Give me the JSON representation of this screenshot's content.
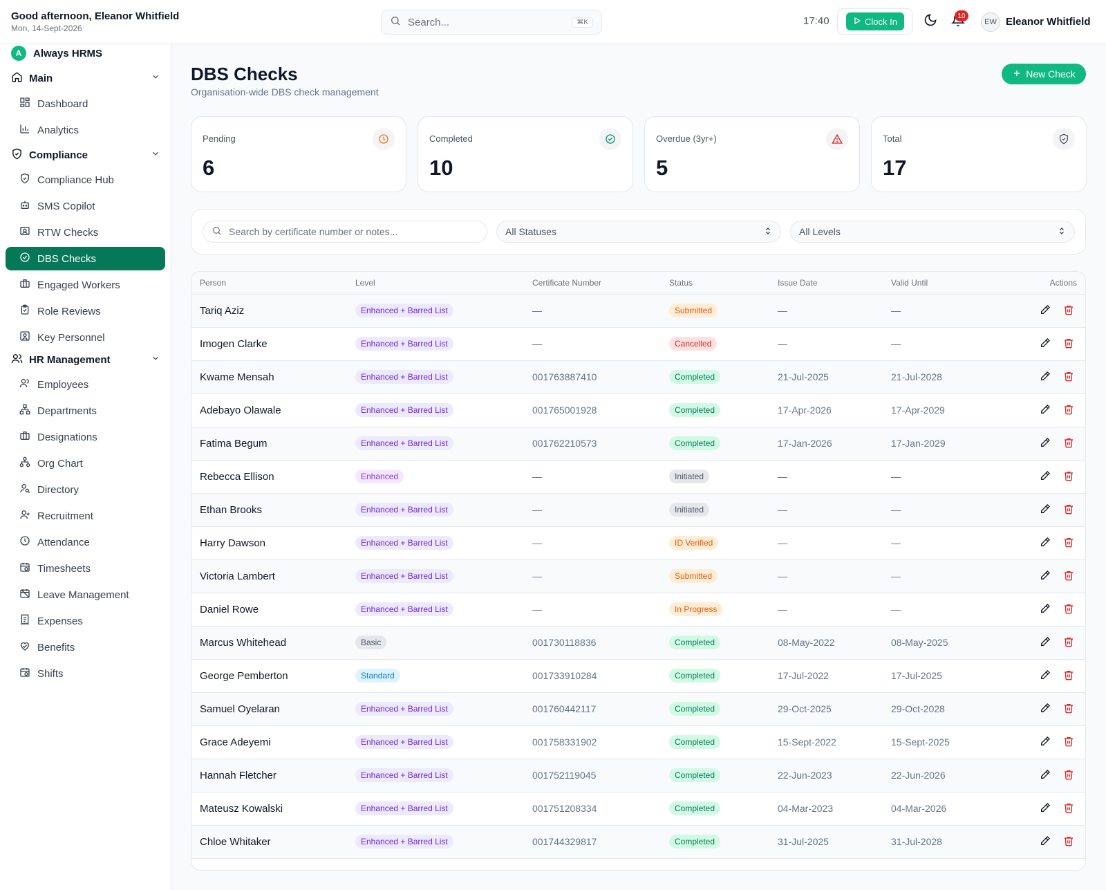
{
  "header": {
    "greeting": "Good afternoon, Eleanor Whitfield",
    "date": "Mon, 14-Sept-2026",
    "search_placeholder": "Search...",
    "search_shortcut": "⌘K",
    "time": "17:40",
    "clock_in_label": "Clock In",
    "notification_count": "10",
    "avatar_initials": "EW",
    "user_name": "Eleanor Whitfield"
  },
  "sidebar": {
    "brand_letter": "A",
    "brand_name": "Always HRMS",
    "sections": {
      "main": "Main",
      "compliance": "Compliance",
      "hr": "HR Management"
    },
    "items": {
      "dashboard": "Dashboard",
      "analytics": "Analytics",
      "compliance_hub": "Compliance Hub",
      "sms_copilot": "SMS Copilot",
      "rtw_checks": "RTW Checks",
      "dbs_checks": "DBS Checks",
      "engaged_workers": "Engaged Workers",
      "role_reviews": "Role Reviews",
      "key_personnel": "Key Personnel",
      "employees": "Employees",
      "departments": "Departments",
      "designations": "Designations",
      "org_chart": "Org Chart",
      "directory": "Directory",
      "recruitment": "Recruitment",
      "attendance": "Attendance",
      "timesheets": "Timesheets",
      "leave_management": "Leave Management",
      "expenses": "Expenses",
      "benefits": "Benefits",
      "shifts": "Shifts"
    },
    "active_item": "DBS Checks"
  },
  "page": {
    "title": "DBS Checks",
    "subtitle": "Organisation-wide DBS check management",
    "new_button": "New Check"
  },
  "stats": [
    {
      "label": "Pending",
      "value": "6",
      "icon": "clock-icon",
      "color": "#f97316"
    },
    {
      "label": "Completed",
      "value": "10",
      "icon": "check-circle-icon",
      "color": "#059669"
    },
    {
      "label": "Overdue (3yr+)",
      "value": "5",
      "icon": "alert-triangle-icon",
      "color": "#dc2626"
    },
    {
      "label": "Total",
      "value": "17",
      "icon": "shield-check-icon",
      "color": "#4b5563"
    }
  ],
  "filters": {
    "search_placeholder": "Search by certificate number or notes...",
    "status_selected": "All Statuses",
    "level_selected": "All Levels"
  },
  "table": {
    "columns": [
      "Person",
      "Level",
      "Certificate Number",
      "Status",
      "Issue Date",
      "Valid Until",
      "Actions"
    ],
    "rows": [
      {
        "person": "Tariq Aziz",
        "level": "Enhanced + Barred List",
        "cert": "—",
        "status": "Submitted",
        "issue": "—",
        "valid": "—"
      },
      {
        "person": "Imogen Clarke",
        "level": "Enhanced + Barred List",
        "cert": "—",
        "status": "Cancelled",
        "issue": "—",
        "valid": "—"
      },
      {
        "person": "Kwame Mensah",
        "level": "Enhanced + Barred List",
        "cert": "001763887410",
        "status": "Completed",
        "issue": "21-Jul-2025",
        "valid": "21-Jul-2028"
      },
      {
        "person": "Adebayo Olawale",
        "level": "Enhanced + Barred List",
        "cert": "001765001928",
        "status": "Completed",
        "issue": "17-Apr-2026",
        "valid": "17-Apr-2029"
      },
      {
        "person": "Fatima Begum",
        "level": "Enhanced + Barred List",
        "cert": "001762210573",
        "status": "Completed",
        "issue": "17-Jan-2026",
        "valid": "17-Jan-2029"
      },
      {
        "person": "Rebecca Ellison",
        "level": "Enhanced",
        "cert": "—",
        "status": "Initiated",
        "issue": "—",
        "valid": "—"
      },
      {
        "person": "Ethan Brooks",
        "level": "Enhanced + Barred List",
        "cert": "—",
        "status": "Initiated",
        "issue": "—",
        "valid": "—"
      },
      {
        "person": "Harry Dawson",
        "level": "Enhanced + Barred List",
        "cert": "—",
        "status": "ID Verified",
        "issue": "—",
        "valid": "—"
      },
      {
        "person": "Victoria Lambert",
        "level": "Enhanced + Barred List",
        "cert": "—",
        "status": "Submitted",
        "issue": "—",
        "valid": "—"
      },
      {
        "person": "Daniel Rowe",
        "level": "Enhanced + Barred List",
        "cert": "—",
        "status": "In Progress",
        "issue": "—",
        "valid": "—"
      },
      {
        "person": "Marcus Whitehead",
        "level": "Basic",
        "cert": "001730118836",
        "status": "Completed",
        "issue": "08-May-2022",
        "valid": "08-May-2025"
      },
      {
        "person": "George Pemberton",
        "level": "Standard",
        "cert": "001733910284",
        "status": "Completed",
        "issue": "17-Jul-2022",
        "valid": "17-Jul-2025"
      },
      {
        "person": "Samuel Oyelaran",
        "level": "Enhanced + Barred List",
        "cert": "001760442117",
        "status": "Completed",
        "issue": "29-Oct-2025",
        "valid": "29-Oct-2028"
      },
      {
        "person": "Grace Adeyemi",
        "level": "Enhanced + Barred List",
        "cert": "001758331902",
        "status": "Completed",
        "issue": "15-Sept-2022",
        "valid": "15-Sept-2025"
      },
      {
        "person": "Hannah Fletcher",
        "level": "Enhanced + Barred List",
        "cert": "001752119045",
        "status": "Completed",
        "issue": "22-Jun-2023",
        "valid": "22-Jun-2026"
      },
      {
        "person": "Mateusz Kowalski",
        "level": "Enhanced + Barred List",
        "cert": "001751208334",
        "status": "Completed",
        "issue": "04-Mar-2023",
        "valid": "04-Mar-2026"
      },
      {
        "person": "Chloe Whitaker",
        "level": "Enhanced + Barred List",
        "cert": "001744329817",
        "status": "Completed",
        "issue": "31-Jul-2025",
        "valid": "31-Jul-2028"
      }
    ]
  },
  "colors": {
    "accent": "#10b981",
    "active_nav": "#047857",
    "status": {
      "Submitted": {
        "bg": "#ffedd5",
        "fg": "#ea580c"
      },
      "Cancelled": {
        "bg": "#fee2e2",
        "fg": "#dc2626"
      },
      "Completed": {
        "bg": "#d1fae5",
        "fg": "#047857"
      },
      "Initiated": {
        "bg": "#e5e7eb",
        "fg": "#4b5563"
      },
      "ID Verified": {
        "bg": "#ffedd5",
        "fg": "#ea580c"
      },
      "In Progress": {
        "bg": "#ffedd5",
        "fg": "#ea580c"
      }
    },
    "level": {
      "Enhanced + Barred List": {
        "bg": "#ede9fe",
        "fg": "#6d28d9"
      },
      "Enhanced": {
        "bg": "#f3e8ff",
        "fg": "#9333ea"
      },
      "Basic": {
        "bg": "#e5e7eb",
        "fg": "#4b5563"
      },
      "Standard": {
        "bg": "#e0f2fe",
        "fg": "#0284c7"
      }
    }
  }
}
